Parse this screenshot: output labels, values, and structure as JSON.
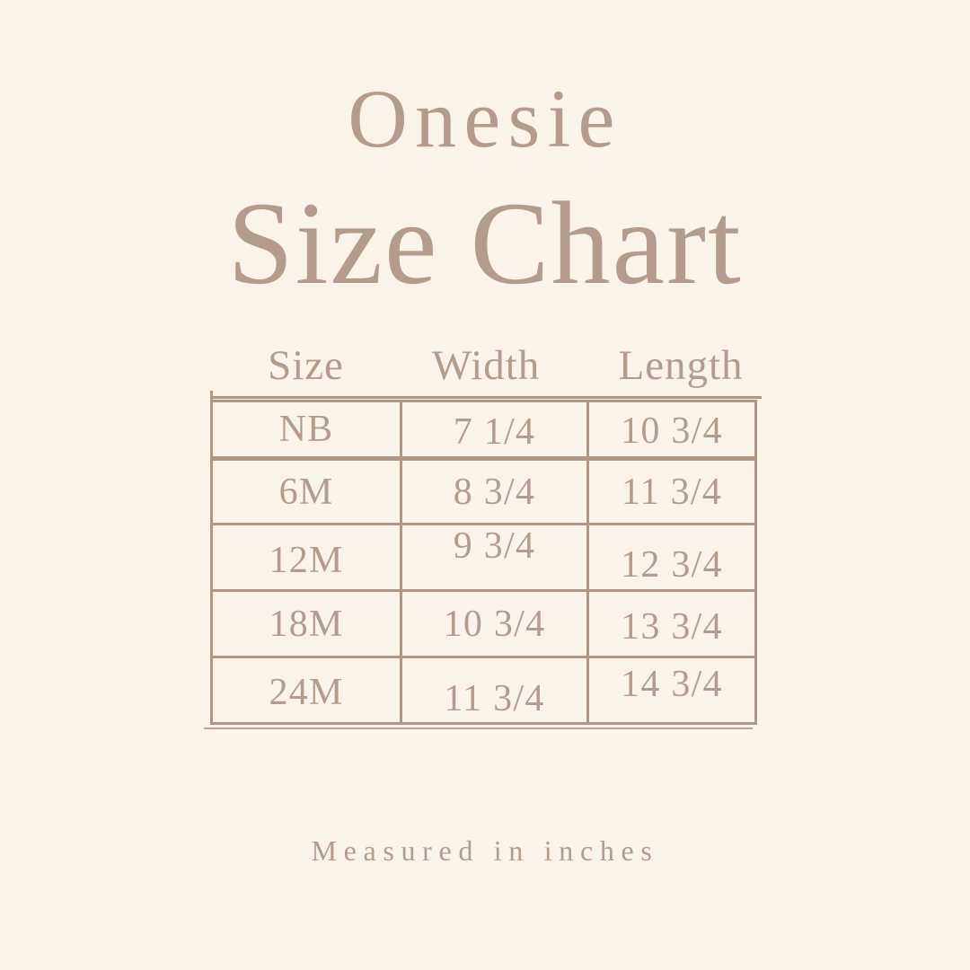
{
  "colors": {
    "background": "#faf3e9",
    "text": "#b49c8c",
    "table_line": "#af9786"
  },
  "header": {
    "subtitle": "Onesie",
    "title": "Size Chart"
  },
  "table": {
    "columns": [
      "Size",
      "Width",
      "Length"
    ],
    "rows": [
      {
        "size": "NB",
        "width": "7 1/4",
        "length": "10 3/4"
      },
      {
        "size": "6M",
        "width": "8 3/4",
        "length": "11 3/4"
      },
      {
        "size": "12M",
        "width": "9 3/4",
        "length": "12 3/4"
      },
      {
        "size": "18M",
        "width": "10 3/4",
        "length": "13 3/4"
      },
      {
        "size": "24M",
        "width": "11 3/4",
        "length": "14 3/4"
      }
    ]
  },
  "footer": {
    "note": "Measured in inches"
  }
}
